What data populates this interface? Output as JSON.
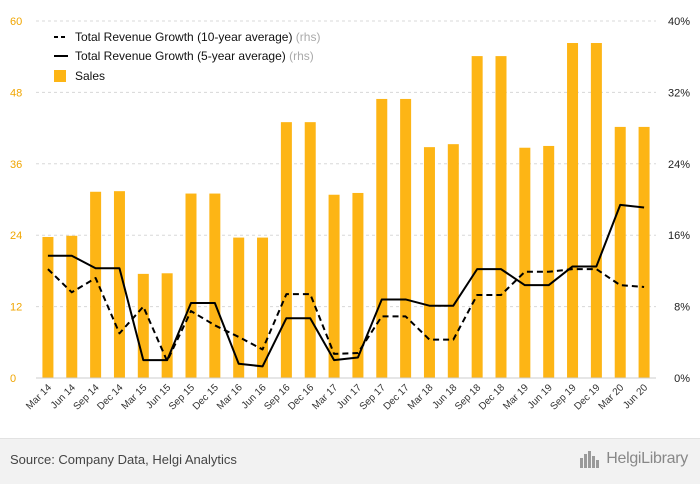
{
  "chart_data": {
    "type": "bar",
    "categories": [
      "Mar 14",
      "Jun 14",
      "Sep 14",
      "Dec 14",
      "Mar 15",
      "Jun 15",
      "Sep 15",
      "Dec 15",
      "Mar 16",
      "Jun 16",
      "Sep 16",
      "Dec 16",
      "Mar 17",
      "Jun 17",
      "Sep 17",
      "Dec 17",
      "Mar 18",
      "Jun 18",
      "Sep 18",
      "Dec 18",
      "Mar 19",
      "Jun 19",
      "Sep 19",
      "Dec 19",
      "Mar 20",
      "Jun 20"
    ],
    "series": [
      {
        "name": "Sales",
        "kind": "bar",
        "axis": "left",
        "color": "#fdb515",
        "values": [
          23.7,
          23.9,
          31.3,
          31.4,
          17.5,
          17.6,
          31.0,
          31.0,
          23.6,
          23.6,
          43.0,
          43.0,
          30.8,
          31.1,
          46.9,
          46.9,
          38.8,
          39.3,
          54.1,
          54.1,
          38.7,
          39.0,
          56.3,
          56.3,
          42.2,
          42.2
        ]
      },
      {
        "name": "Total Revenue Growth (10-year average)",
        "kind": "line",
        "dash": "dashed",
        "axis": "right",
        "color": "#000000",
        "values": [
          12.2,
          9.6,
          11.2,
          5.0,
          8.0,
          1.9,
          7.5,
          5.9,
          4.6,
          3.2,
          9.4,
          9.4,
          2.7,
          2.8,
          6.9,
          6.9,
          4.3,
          4.3,
          9.3,
          9.3,
          11.9,
          11.9,
          12.2,
          12.2,
          10.4,
          10.2
        ]
      },
      {
        "name": "Total Revenue Growth (5-year average)",
        "kind": "line",
        "dash": "solid",
        "axis": "right",
        "color": "#000000",
        "values": [
          13.7,
          13.7,
          12.3,
          12.3,
          2.0,
          2.0,
          8.4,
          8.4,
          1.6,
          1.3,
          6.7,
          6.7,
          2.0,
          2.3,
          8.8,
          8.8,
          8.1,
          8.1,
          12.2,
          12.2,
          10.4,
          10.4,
          12.5,
          12.5,
          19.4,
          19.1
        ]
      }
    ],
    "left_axis": {
      "ylim": [
        0,
        60
      ],
      "ticks": [
        "0",
        "12",
        "24",
        "36",
        "48",
        "60"
      ]
    },
    "right_axis": {
      "ylim": [
        0,
        40
      ],
      "ticks": [
        "0%",
        "8%",
        "16%",
        "24%",
        "32%",
        "40%"
      ]
    },
    "legend": {
      "placement": "top-left",
      "items": [
        {
          "label": "Total Revenue Growth (10-year average)",
          "suffix": "(rhs)",
          "swatch": "dashed-line"
        },
        {
          "label": "Total Revenue Growth (5-year average)",
          "suffix": "(rhs)",
          "swatch": "solid-line"
        },
        {
          "label": "Sales",
          "suffix": "",
          "swatch": "box"
        }
      ]
    },
    "grid": "horizontal-dashed",
    "title": "",
    "xlabel": "",
    "ylabel": ""
  },
  "footer": {
    "source": "Source: Company Data, Helgi Analytics",
    "brand": "HelgiLibrary",
    "brand_icon": "city-skyline-icon"
  }
}
